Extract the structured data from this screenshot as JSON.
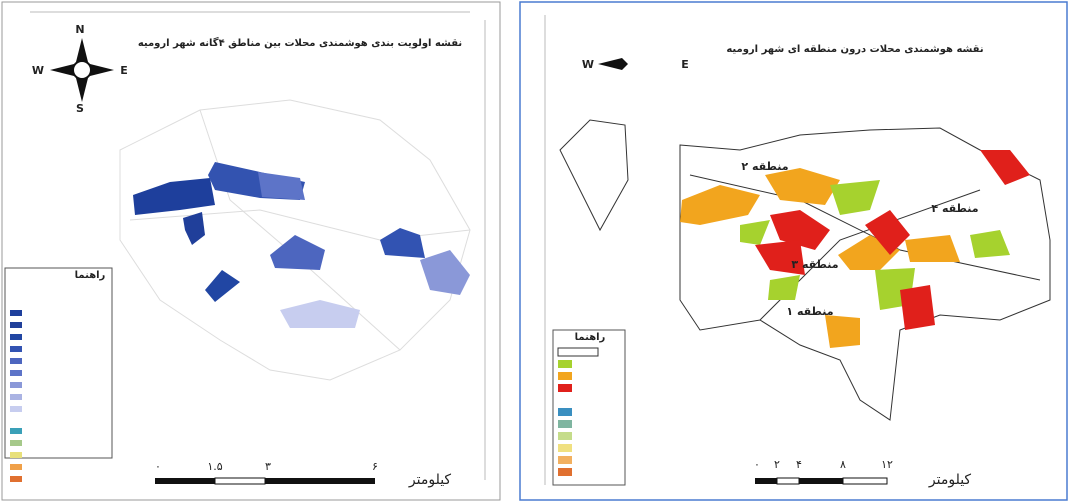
{
  "left_map": {
    "title": "نقشه اولویت بندی هوشمندی محلات بین مناطق ۴گانه شهر ارومیه",
    "compass": {
      "north": "N",
      "south": "S",
      "west": "W",
      "east": "E"
    },
    "legend_title": "راهنما",
    "scale": {
      "ticks": [
        "۰",
        "۱.۵",
        "۳",
        "۶"
      ],
      "unit": "کیلومتر"
    }
  },
  "right_map": {
    "title": "نقشه هوشمندی محلات درون منطقه ای شهر ارومیه",
    "compass": {
      "west": "W",
      "east": "E"
    },
    "regions": [
      "منطقه ۲",
      "منطقه ۴",
      "منطقه ۳",
      "منطقه ۱"
    ],
    "legend_title": "راهنما",
    "scale": {
      "ticks": [
        "۰",
        "۲",
        "۴",
        "۸",
        "۱۲"
      ],
      "unit": "کیلومتر"
    }
  }
}
